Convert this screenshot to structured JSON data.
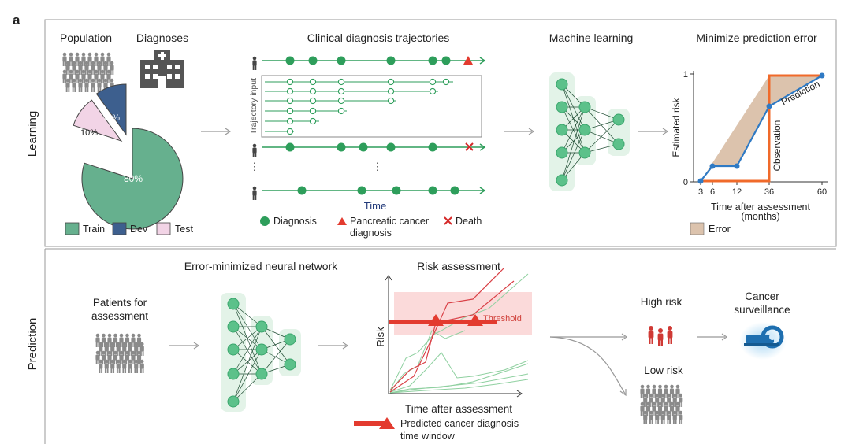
{
  "panel_label": "a",
  "rows": {
    "learning": "Learning",
    "prediction": "Prediction"
  },
  "learning": {
    "population": "Population",
    "diagnoses": "Diagnoses",
    "pie": {
      "train_pct": "80%",
      "dev_pct": "10%",
      "test_pct": "10%"
    },
    "pie_legend": {
      "train": "Train",
      "dev": "Dev",
      "test": "Test"
    },
    "trajectories_title": "Clinical diagnosis trajectories",
    "trajectory_input": "Trajectory input",
    "time": "Time",
    "legend": {
      "diagnosis": "Diagnosis",
      "pancreatic_line1": "Pancreatic cancer",
      "pancreatic_line2": "diagnosis",
      "death": "Death"
    },
    "ml_title": "Machine learning",
    "minimize_title": "Minimize prediction error",
    "risk_chart": {
      "ylabel": "Estimated risk",
      "xlabel_line1": "Time after assessment",
      "xlabel_line2": "(months)",
      "yticks": [
        "0",
        "1"
      ],
      "xticks": [
        "3",
        "6",
        "12",
        "36",
        "60"
      ],
      "prediction_label": "Prediction",
      "observation_label": "Observation",
      "error_label": "Error"
    }
  },
  "prediction": {
    "nn_title": "Error-minimized neural network",
    "patients_line1": "Patients for",
    "patients_line2": "assessment",
    "risk_title": "Risk assessment",
    "risk_axis": "Risk",
    "threshold": "Threshold",
    "x_axis": "Time after assessment",
    "window_line1": "Predicted cancer diagnosis",
    "window_line2": "time window",
    "high_risk": "High risk",
    "low_risk": "Low risk",
    "surveillance_line1": "Cancer",
    "surveillance_line2": "surveillance"
  },
  "colors": {
    "green": "#2e9e5b",
    "train": "#66b08e",
    "dev": "#3d5f8e",
    "test": "#f2d4e6",
    "red": "#e33b2f",
    "orange": "#f06a2a",
    "blue": "#2f7ac4",
    "error_fill": "#dcc3ad",
    "patient_gray": "#8a8a8a",
    "high_risk_red": "#d03a35"
  }
}
